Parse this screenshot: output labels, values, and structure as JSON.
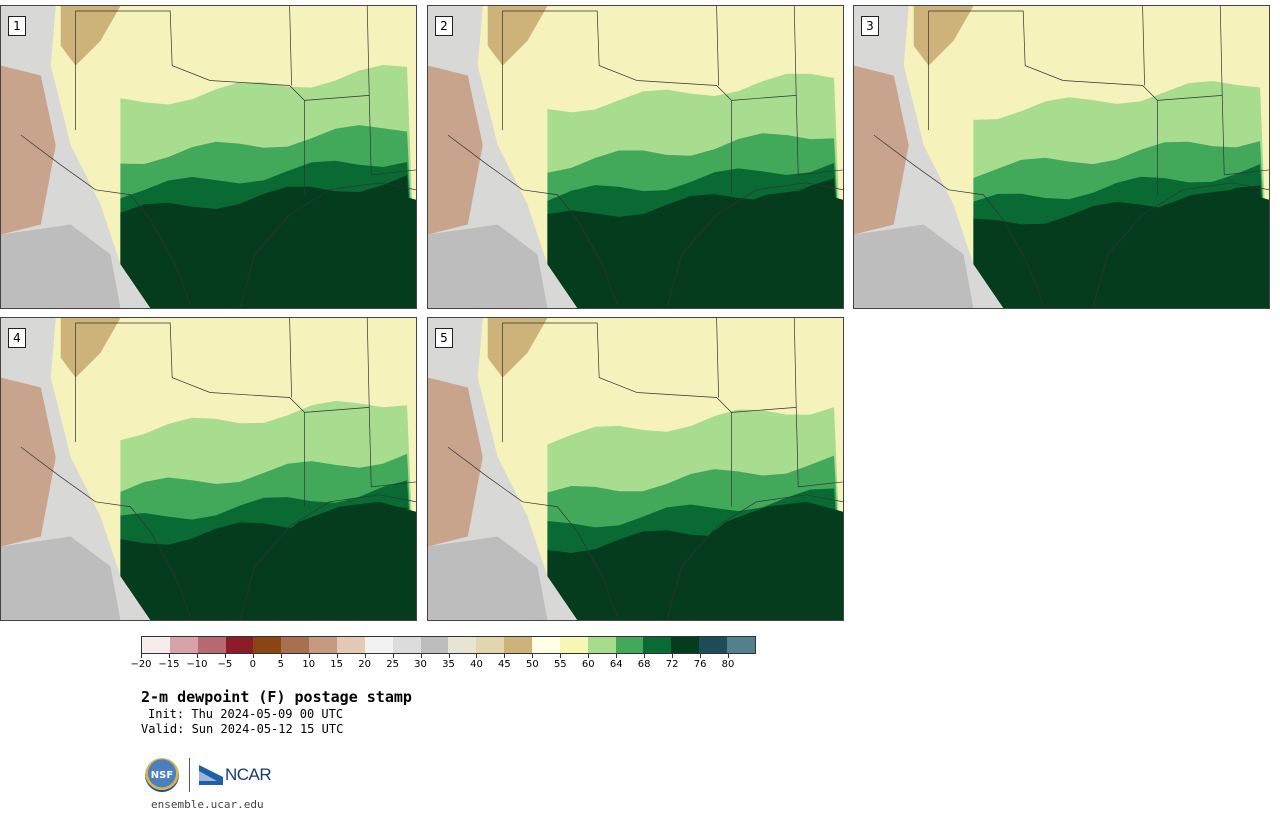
{
  "panels": [
    {
      "label": "1",
      "variant": 0
    },
    {
      "label": "2",
      "variant": 1
    },
    {
      "label": "3",
      "variant": 2
    },
    {
      "label": "4",
      "variant": 3
    },
    {
      "label": "5",
      "variant": 4
    }
  ],
  "colorbar": {
    "colors": [
      "#f7ecec",
      "#d7a2a8",
      "#b86a70",
      "#8c1c28",
      "#8b4513",
      "#a8704e",
      "#c59a80",
      "#e4c9b6",
      "#f2f2f2",
      "#dcdcdc",
      "#bdbdbd",
      "#e8e4d4",
      "#e2d6ac",
      "#cdb37a",
      "#ffffe6",
      "#f8f8b6",
      "#a6dc8c",
      "#42a85a",
      "#0a6a34",
      "#053c1e",
      "#1e4c58",
      "#52808c"
    ],
    "ticks": [
      "−20",
      "−15",
      "−10",
      "−5",
      "0",
      "5",
      "10",
      "15",
      "20",
      "25",
      "30",
      "35",
      "40",
      "45",
      "50",
      "55",
      "60",
      "64",
      "68",
      "72",
      "76",
      "80"
    ]
  },
  "title": "2-m dewpoint (F) postage stamp",
  "init": "Init: Thu 2024-05-09 00 UTC",
  "valid": "Valid: Sun 2024-05-12 15 UTC",
  "logos": {
    "nsf": "NSF",
    "ncar": "NCAR"
  },
  "site": "ensemble.ucar.edu"
}
